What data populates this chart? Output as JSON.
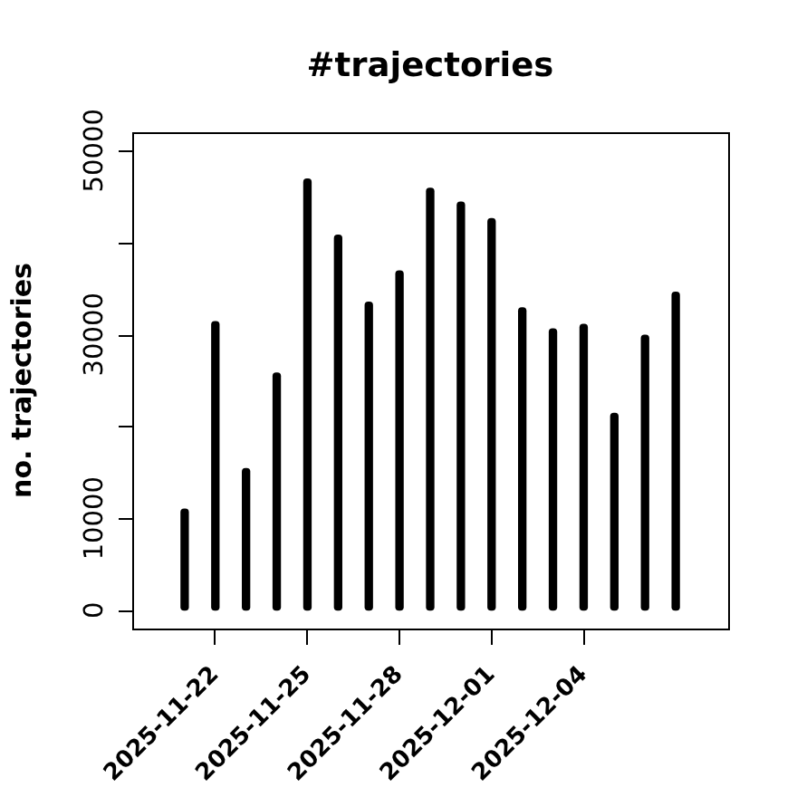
{
  "chart_data": {
    "type": "bar",
    "title": "#trajectories",
    "ylabel": "no. trajectories",
    "x": [
      "2025-11-21",
      "2025-11-22",
      "2025-11-23",
      "2025-11-24",
      "2025-11-25",
      "2025-11-26",
      "2025-11-27",
      "2025-11-28",
      "2025-11-29",
      "2025-11-30",
      "2025-12-01",
      "2025-12-02",
      "2025-12-03",
      "2025-12-04",
      "2025-12-05",
      "2025-12-06",
      "2025-12-07"
    ],
    "values": [
      11000,
      31400,
      15400,
      25800,
      46900,
      40800,
      33500,
      36900,
      45900,
      44400,
      42600,
      32900,
      30600,
      31100,
      21400,
      29900,
      34600
    ],
    "color": "#000000",
    "xlim": [
      "2025-11-19T07:00",
      "2025-12-08T17:00"
    ],
    "xticks": [
      "2025-11-22",
      "2025-11-25",
      "2025-11-28",
      "2025-12-01",
      "2025-12-04"
    ],
    "ylim": [
      -2000,
      52000
    ],
    "yticks": [
      0,
      10000,
      {
        "value": 20000,
        "label": null
      },
      30000,
      {
        "value": 40000,
        "label": null
      },
      50000
    ]
  }
}
